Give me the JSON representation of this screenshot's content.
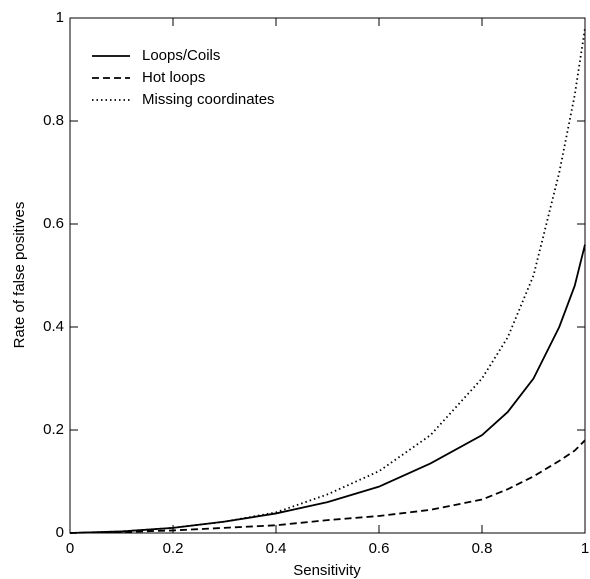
{
  "chart_data": {
    "type": "line",
    "x_label": "Sensitivity",
    "y_label": "Rate of false positives",
    "x": [
      0,
      0.1,
      0.2,
      0.3,
      0.4,
      0.5,
      0.6,
      0.7,
      0.8,
      0.85,
      0.9,
      0.95,
      0.98,
      1
    ],
    "series": [
      {
        "name": "Loops/Coils",
        "color": "#000000",
        "dash": "solid",
        "values": [
          0,
          0.003,
          0.01,
          0.022,
          0.038,
          0.06,
          0.09,
          0.135,
          0.19,
          0.235,
          0.3,
          0.4,
          0.48,
          0.56
        ]
      },
      {
        "name": "Hot loops",
        "color": "#000000",
        "dash": "dashed",
        "values": [
          0,
          0.002,
          0.005,
          0.01,
          0.015,
          0.025,
          0.033,
          0.045,
          0.065,
          0.085,
          0.11,
          0.14,
          0.16,
          0.18
        ]
      },
      {
        "name": "Missing coordinates",
        "color": "#000000",
        "dash": "dotted",
        "values": [
          0,
          0.003,
          0.01,
          0.022,
          0.04,
          0.075,
          0.12,
          0.19,
          0.3,
          0.38,
          0.5,
          0.7,
          0.85,
          0.98
        ]
      }
    ],
    "xlim": [
      0,
      1
    ],
    "ylim": [
      0,
      1
    ],
    "xticks": [
      0,
      0.2,
      0.4,
      0.6,
      0.8,
      1
    ],
    "yticks": [
      0,
      0.2,
      0.4,
      0.6,
      0.8,
      1
    ],
    "legend": "upper-left",
    "grid": false
  }
}
